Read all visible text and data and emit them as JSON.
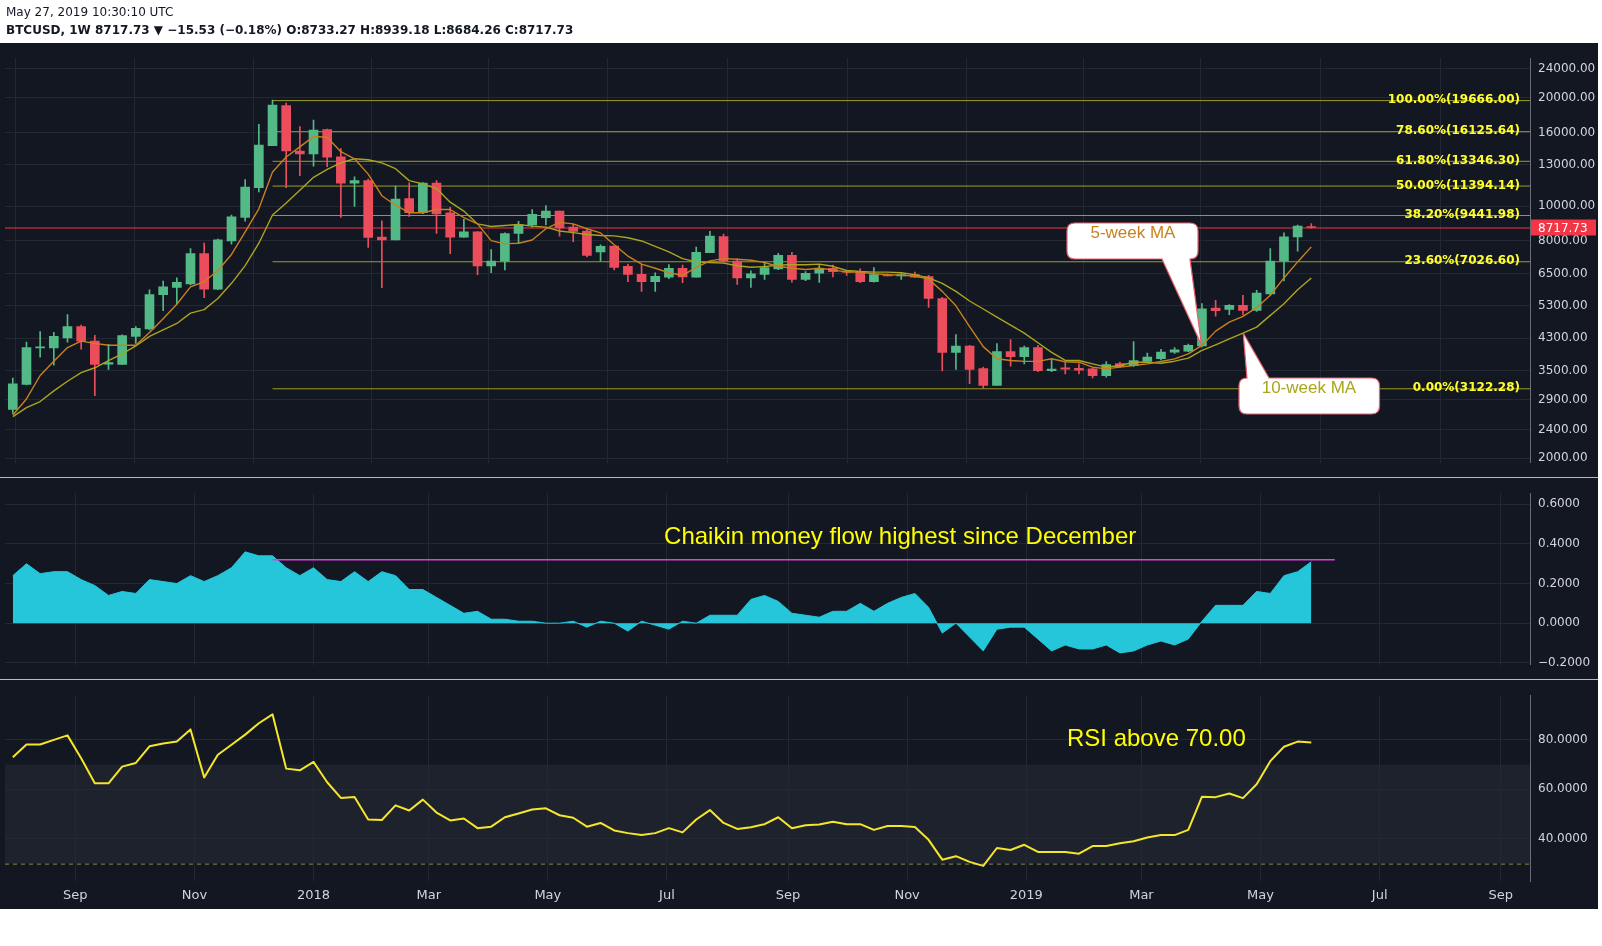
{
  "chart_data": [
    {
      "type": "candlestick",
      "subtitle": "May 27, 2019 10:30:10 UTC",
      "title": "BTCUSD, 1W  8717.73 ▼ −15.53 (−0.18%) O:8733.27 H:8939.18 L:8684.26 C:8717.73",
      "x": [
        "2017-07-31",
        "2017-08-07",
        "2017-08-14",
        "2017-08-21",
        "2017-08-28",
        "2017-09-04",
        "2017-09-11",
        "2017-09-18",
        "2017-09-25",
        "2017-10-02",
        "2017-10-09",
        "2017-10-16",
        "2017-10-23",
        "2017-10-30",
        "2017-11-06",
        "2017-11-13",
        "2017-11-20",
        "2017-11-27",
        "2017-12-04",
        "2017-12-11",
        "2017-12-18",
        "2017-12-25",
        "2018-01-01",
        "2018-01-08",
        "2018-01-15",
        "2018-01-22",
        "2018-01-29",
        "2018-02-05",
        "2018-02-12",
        "2018-02-19",
        "2018-02-26",
        "2018-03-05",
        "2018-03-12",
        "2018-03-19",
        "2018-03-26",
        "2018-04-02",
        "2018-04-09",
        "2018-04-16",
        "2018-04-23",
        "2018-04-30",
        "2018-05-07",
        "2018-05-14",
        "2018-05-21",
        "2018-05-28",
        "2018-06-04",
        "2018-06-11",
        "2018-06-18",
        "2018-06-25",
        "2018-07-02",
        "2018-07-09",
        "2018-07-16",
        "2018-07-23",
        "2018-07-30",
        "2018-08-06",
        "2018-08-13",
        "2018-08-20",
        "2018-08-27",
        "2018-09-03",
        "2018-09-10",
        "2018-09-17",
        "2018-09-24",
        "2018-10-01",
        "2018-10-08",
        "2018-10-15",
        "2018-10-22",
        "2018-10-29",
        "2018-11-05",
        "2018-11-12",
        "2018-11-19",
        "2018-11-26",
        "2018-12-03",
        "2018-12-10",
        "2018-12-17",
        "2018-12-24",
        "2018-12-31",
        "2019-01-07",
        "2019-01-14",
        "2019-01-21",
        "2019-01-28",
        "2019-02-04",
        "2019-02-11",
        "2019-02-18",
        "2019-02-25",
        "2019-03-04",
        "2019-03-11",
        "2019-03-18",
        "2019-03-25",
        "2019-04-01",
        "2019-04-08",
        "2019-04-15",
        "2019-04-22",
        "2019-04-29",
        "2019-05-06",
        "2019-05-13",
        "2019-05-20",
        "2019-05-27"
      ],
      "ohlc": [
        [
          2726,
          3332,
          2661,
          3210
        ],
        [
          3198,
          4194,
          3190,
          4050
        ],
        [
          4040,
          4486,
          3807,
          4070
        ],
        [
          4040,
          4460,
          3617,
          4351
        ],
        [
          4305,
          5002,
          4194,
          4627
        ],
        [
          4627,
          4675,
          4005,
          4220
        ],
        [
          4220,
          4380,
          2977,
          3639
        ],
        [
          3640,
          4135,
          3520,
          3680
        ],
        [
          3639,
          4395,
          3639,
          4370
        ],
        [
          4350,
          4630,
          4160,
          4580
        ],
        [
          4565,
          5858,
          4535,
          5679
        ],
        [
          5679,
          6192,
          5125,
          5967
        ],
        [
          5950,
          6320,
          5362,
          6140
        ],
        [
          6085,
          7615,
          6040,
          7384
        ],
        [
          7384,
          7887,
          5565,
          5882
        ],
        [
          5882,
          8100,
          5860,
          8053
        ],
        [
          8000,
          9430,
          7840,
          9332
        ],
        [
          9300,
          11840,
          9070,
          11290
        ],
        [
          11250,
          16840,
          10950,
          14750
        ],
        [
          14700,
          19666,
          14700,
          19050
        ],
        [
          19000,
          19300,
          11250,
          14210
        ],
        [
          14210,
          16600,
          12130,
          13950
        ],
        [
          13950,
          17300,
          12900,
          16230
        ],
        [
          16300,
          16350,
          12850,
          13670
        ],
        [
          13700,
          14440,
          9290,
          11570
        ],
        [
          11570,
          12050,
          9980,
          11760
        ],
        [
          11760,
          11880,
          7680,
          8187
        ],
        [
          8200,
          9100,
          5940,
          8053
        ],
        [
          8053,
          11360,
          8053,
          10445
        ],
        [
          10490,
          11600,
          9350,
          9583
        ],
        [
          9580,
          11620,
          9520,
          11570
        ],
        [
          11570,
          11760,
          8390,
          9500
        ],
        [
          9580,
          9920,
          7370,
          8200
        ],
        [
          8200,
          9190,
          8180,
          8475
        ],
        [
          8475,
          8500,
          6450,
          6817
        ],
        [
          6817,
          7570,
          6530,
          7030
        ],
        [
          7030,
          8420,
          6650,
          8390
        ],
        [
          8390,
          9070,
          7886,
          8862
        ],
        [
          8862,
          9780,
          8730,
          9485
        ],
        [
          9280,
          10025,
          8862,
          9682
        ],
        [
          9682,
          9682,
          8250,
          8700
        ],
        [
          8738,
          8900,
          7965,
          8508
        ],
        [
          8520,
          8650,
          7230,
          7295
        ],
        [
          7460,
          7810,
          7040,
          7725
        ],
        [
          7740,
          7740,
          6650,
          6760
        ],
        [
          6800,
          6900,
          6170,
          6460
        ],
        [
          6460,
          6880,
          5798,
          6166
        ],
        [
          6166,
          6530,
          5798,
          6385
        ],
        [
          6350,
          6880,
          6290,
          6720
        ],
        [
          6720,
          6860,
          6130,
          6360
        ],
        [
          6350,
          7693,
          6350,
          7445
        ],
        [
          7420,
          8510,
          7420,
          8250
        ],
        [
          8220,
          8360,
          6970,
          7040
        ],
        [
          7040,
          7140,
          6060,
          6320
        ],
        [
          6320,
          6610,
          5950,
          6480
        ],
        [
          6460,
          6930,
          6260,
          6745
        ],
        [
          6690,
          7390,
          6660,
          7300
        ],
        [
          7300,
          7445,
          6150,
          6260
        ],
        [
          6260,
          6580,
          6210,
          6510
        ],
        [
          6510,
          6860,
          6135,
          6720
        ],
        [
          6720,
          6860,
          6360,
          6580
        ],
        [
          6600,
          6610,
          6424,
          6550
        ],
        [
          6580,
          6700,
          6125,
          6170
        ],
        [
          6170,
          6745,
          6150,
          6450
        ],
        [
          6450,
          6480,
          6400,
          6400
        ],
        [
          6400,
          6500,
          6260,
          6450
        ],
        [
          6450,
          6560,
          6330,
          6350
        ],
        [
          6370,
          6424,
          5233,
          5541
        ],
        [
          5541,
          5580,
          3486,
          3927
        ],
        [
          3927,
          4400,
          3520,
          4090
        ],
        [
          4090,
          4110,
          3218,
          3520
        ],
        [
          3540,
          3575,
          3122.28,
          3179
        ],
        [
          3179,
          4155,
          3179,
          3950
        ],
        [
          3950,
          4263,
          3595,
          3820
        ],
        [
          3820,
          4090,
          3650,
          4050
        ],
        [
          4050,
          4110,
          3472,
          3494
        ],
        [
          3494,
          3755,
          3472,
          3530
        ],
        [
          3560,
          3680,
          3420,
          3530
        ],
        [
          3549,
          3649,
          3423,
          3505
        ],
        [
          3534,
          3560,
          3336,
          3386
        ],
        [
          3386,
          3704,
          3350,
          3634
        ],
        [
          3658,
          3690,
          3560,
          3587
        ],
        [
          3610,
          4210,
          3590,
          3728
        ],
        [
          3705,
          3908,
          3690,
          3808
        ],
        [
          3770,
          4003,
          3740,
          3933
        ],
        [
          3933,
          4052,
          3900,
          3992
        ],
        [
          3960,
          4143,
          3947,
          4105
        ],
        [
          4090,
          5360,
          4062,
          5190
        ],
        [
          5210,
          5476,
          4952,
          5124
        ],
        [
          5170,
          5330,
          4995,
          5304
        ],
        [
          5304,
          5654,
          4995,
          5135
        ],
        [
          5135,
          5833,
          5100,
          5739
        ],
        [
          5700,
          7621,
          5660,
          7030
        ],
        [
          7026,
          8425,
          6196,
          8214
        ],
        [
          8214,
          8855,
          7490,
          8797
        ],
        [
          8733.27,
          8939.18,
          8684.26,
          8717.73
        ]
      ],
      "series": [
        {
          "type": "line",
          "name": "5-week MA",
          "color": "#c8811e",
          "values": [
            2633,
            2917,
            3388,
            3708,
            4050,
            4220,
            4159,
            4108,
            4108,
            4108,
            4459,
            4869,
            5341,
            5967,
            6166,
            6624,
            7340,
            8472,
            9820,
            12430,
            13670,
            14590,
            15580,
            15520,
            14150,
            13520,
            12260,
            10680,
            10050,
            9580,
            9580,
            9780,
            9780,
            9290,
            8920,
            8017,
            7855,
            7886,
            8050,
            8649,
            9010,
            8920,
            8649,
            8420,
            7805,
            7263,
            6900,
            6720,
            6530,
            6424,
            6761,
            7044,
            7145,
            7116,
            7072,
            6971,
            6804,
            6720,
            6665,
            6720,
            6651,
            6557,
            6557,
            6489,
            6450,
            6424,
            6397,
            6267,
            5798,
            5287,
            4627,
            4074,
            3769,
            3730,
            3708,
            3708,
            3769,
            3700,
            3688,
            3573,
            3534,
            3573,
            3610,
            3649,
            3704,
            3768,
            3890,
            4105,
            4498,
            4766,
            4941,
            5224,
            5653,
            6317,
            6998,
            7702
          ]
        },
        {
          "type": "line",
          "name": "10-week MA",
          "color": "#a9a51e",
          "values": [
            2606,
            2760,
            2869,
            3070,
            3265,
            3451,
            3559,
            3724,
            3887,
            4091,
            4351,
            4533,
            4723,
            5044,
            5159,
            5541,
            6103,
            6832,
            7886,
            9446,
            10190,
            11060,
            12010,
            12640,
            13170,
            13520,
            13440,
            13170,
            12690,
            11760,
            11520,
            11180,
            10250,
            9680,
            8920,
            8776,
            8829,
            8884,
            8794,
            8738,
            8525,
            8438,
            8334,
            8282,
            8265,
            8165,
            8000,
            7727,
            7460,
            7145,
            7000,
            6971,
            6943,
            6830,
            6761,
            6790,
            6858,
            6872,
            6872,
            6900,
            6804,
            6624,
            6584,
            6557,
            6557,
            6530,
            6450,
            6319,
            6103,
            5798,
            5452,
            5180,
            4920,
            4675,
            4441,
            4176,
            3927,
            3730,
            3728,
            3649,
            3573,
            3610,
            3688,
            3688,
            3664,
            3712,
            3784,
            3976,
            4122,
            4282,
            4441,
            4615,
            4973,
            5360,
            5861,
            6317
          ]
        }
      ],
      "xlim": [
        "2017-07-27",
        "2019-09-16"
      ],
      "xticks": [
        {
          "value": "2017-09-01",
          "label": null
        },
        {
          "value": "2017-11-01",
          "label": null
        },
        {
          "value": "2018-01-01",
          "label": null
        },
        {
          "value": "2018-03-01",
          "label": null
        },
        {
          "value": "2018-05-01",
          "label": null
        },
        {
          "value": "2018-07-01",
          "label": null
        },
        {
          "value": "2018-09-01",
          "label": null
        },
        {
          "value": "2018-11-01",
          "label": null
        },
        {
          "value": "2019-01-01",
          "label": null
        },
        {
          "value": "2019-03-01",
          "label": null
        },
        {
          "value": "2019-05-01",
          "label": null
        },
        {
          "value": "2019-07-01",
          "label": null
        },
        {
          "value": "2019-09-01",
          "label": null
        }
      ],
      "ylim": [
        1940,
        25700
      ],
      "yticks": [
        {
          "value": 2000,
          "label": "2000.00"
        },
        {
          "value": 2400,
          "label": "2400.00"
        },
        {
          "value": 2900,
          "label": "2900.00"
        },
        {
          "value": 3500,
          "label": "3500.00"
        },
        {
          "value": 4300,
          "label": "4300.00"
        },
        {
          "value": 5300,
          "label": "5300.00"
        },
        {
          "value": 6500,
          "label": "6500.00"
        },
        {
          "value": 8000,
          "label": "8000.00"
        },
        {
          "value": 10000,
          "label": "10000.00"
        },
        {
          "value": 13000,
          "label": "13000.00"
        },
        {
          "value": 16000,
          "label": "16000.00"
        },
        {
          "value": 20000,
          "label": "20000.00"
        },
        {
          "value": 24000,
          "label": "24000.00"
        }
      ],
      "log": "y",
      "grid": true,
      "tick_labels": "y",
      "marker": "none",
      "ref_lines": [
        {
          "axis": "y",
          "value": 19666,
          "label": "100.00%(19666.00)",
          "color": "#9c9c24"
        },
        {
          "axis": "y",
          "value": 16125.64,
          "label": "78.60%(16125.64)",
          "color": "#9c9c24"
        },
        {
          "axis": "y",
          "value": 13346.3,
          "label": "61.80%(13346.30)",
          "color": "#9c9c24"
        },
        {
          "axis": "y",
          "value": 11394.14,
          "label": "50.00%(11394.14)",
          "color": "#9c9c24"
        },
        {
          "axis": "y",
          "value": 9441.98,
          "label": "38.20%(9441.98)",
          "color": "#9c9c24"
        },
        {
          "axis": "y",
          "value": 7026.6,
          "label": "23.60%(7026.60)",
          "color": "#9c9c24"
        },
        {
          "axis": "y",
          "value": 3122.28,
          "label": "0.00%(3122.28)",
          "color": "#9c9c24"
        },
        {
          "axis": "y",
          "value": 8717.73,
          "label": "8717.73",
          "color": "#f23645"
        }
      ]
    },
    {
      "type": "area",
      "x": [
        "2017-07-31",
        "2017-08-07",
        "2017-08-14",
        "2017-08-21",
        "2017-08-28",
        "2017-09-04",
        "2017-09-11",
        "2017-09-18",
        "2017-09-25",
        "2017-10-02",
        "2017-10-09",
        "2017-10-16",
        "2017-10-23",
        "2017-10-30",
        "2017-11-06",
        "2017-11-13",
        "2017-11-20",
        "2017-11-27",
        "2017-12-04",
        "2017-12-11",
        "2017-12-18",
        "2017-12-25",
        "2018-01-01",
        "2018-01-08",
        "2018-01-15",
        "2018-01-22",
        "2018-01-29",
        "2018-02-05",
        "2018-02-12",
        "2018-02-19",
        "2018-02-26",
        "2018-03-05",
        "2018-03-12",
        "2018-03-19",
        "2018-03-26",
        "2018-04-02",
        "2018-04-09",
        "2018-04-16",
        "2018-04-23",
        "2018-04-30",
        "2018-05-07",
        "2018-05-14",
        "2018-05-21",
        "2018-05-28",
        "2018-06-04",
        "2018-06-11",
        "2018-06-18",
        "2018-06-25",
        "2018-07-02",
        "2018-07-09",
        "2018-07-16",
        "2018-07-23",
        "2018-07-30",
        "2018-08-06",
        "2018-08-13",
        "2018-08-20",
        "2018-08-27",
        "2018-09-03",
        "2018-09-10",
        "2018-09-17",
        "2018-09-24",
        "2018-10-01",
        "2018-10-08",
        "2018-10-15",
        "2018-10-22",
        "2018-10-29",
        "2018-11-05",
        "2018-11-12",
        "2018-11-19",
        "2018-11-26",
        "2018-12-03",
        "2018-12-10",
        "2018-12-17",
        "2018-12-24",
        "2018-12-31",
        "2019-01-07",
        "2019-01-14",
        "2019-01-21",
        "2019-01-28",
        "2019-02-04",
        "2019-02-11",
        "2019-02-18",
        "2019-02-25",
        "2019-03-04",
        "2019-03-11",
        "2019-03-18",
        "2019-03-25",
        "2019-04-01",
        "2019-04-08",
        "2019-04-15",
        "2019-04-22",
        "2019-04-29",
        "2019-05-06",
        "2019-05-13",
        "2019-05-20",
        "2019-05-27"
      ],
      "series": [
        {
          "type": "area",
          "color": "#26c6da",
          "values": [
            0.24,
            0.3,
            0.25,
            0.26,
            0.26,
            0.22,
            0.19,
            0.14,
            0.16,
            0.15,
            0.22,
            0.21,
            0.2,
            0.24,
            0.21,
            0.24,
            0.28,
            0.36,
            0.34,
            0.34,
            0.28,
            0.24,
            0.28,
            0.22,
            0.21,
            0.26,
            0.21,
            0.26,
            0.24,
            0.17,
            0.17,
            0.13,
            0.09,
            0.05,
            0.06,
            0.02,
            0.02,
            0.01,
            0.01,
            0,
            0,
            0.01,
            -0.02,
            0.01,
            0,
            -0.04,
            0.01,
            -0.01,
            -0.03,
            0.01,
            0,
            0.04,
            0.04,
            0.04,
            0.12,
            0.14,
            0.11,
            0.05,
            0.04,
            0.03,
            0.06,
            0.06,
            0.1,
            0.06,
            0.1,
            0.13,
            0.15,
            0.08,
            -0.05,
            0,
            -0.07,
            -0.14,
            -0.03,
            -0.02,
            -0.02,
            -0.08,
            -0.14,
            -0.11,
            -0.13,
            -0.13,
            -0.11,
            -0.15,
            -0.14,
            -0.11,
            -0.09,
            -0.11,
            -0.08,
            0.01,
            0.09,
            0.09,
            0.09,
            0.16,
            0.15,
            0.24,
            0.26,
            0.31
          ]
        },
        {
          "type": "line",
          "color": "#e03ee0",
          "x": [
            "2017-12-11",
            "2019-06-08"
          ],
          "values": [
            0.32,
            0.32
          ]
        }
      ],
      "xlim": [
        "2017-07-27",
        "2019-09-16"
      ],
      "xticks": [
        {
          "value": "2017-09-01",
          "label": null
        },
        {
          "value": "2017-11-01",
          "label": null
        },
        {
          "value": "2018-01-01",
          "label": null
        },
        {
          "value": "2018-03-01",
          "label": null
        },
        {
          "value": "2018-05-01",
          "label": null
        },
        {
          "value": "2018-07-01",
          "label": null
        },
        {
          "value": "2018-09-01",
          "label": null
        },
        {
          "value": "2018-11-01",
          "label": null
        },
        {
          "value": "2019-01-01",
          "label": null
        },
        {
          "value": "2019-03-01",
          "label": null
        },
        {
          "value": "2019-05-01",
          "label": null
        },
        {
          "value": "2019-07-01",
          "label": null
        },
        {
          "value": "2019-09-01",
          "label": null
        }
      ],
      "ylim": [
        -0.21,
        0.656
      ],
      "yticks": [
        {
          "value": -0.2,
          "label": "−0.2000"
        },
        {
          "value": 0,
          "label": "0.0000"
        },
        {
          "value": 0.2,
          "label": "0.2000"
        },
        {
          "value": 0.4,
          "label": "0.4000"
        },
        {
          "value": 0.6,
          "label": "0.6000"
        }
      ],
      "grid": true,
      "tick_labels": "y",
      "marker": "none",
      "annotations": [
        "Chaikin money flow highest since December"
      ]
    },
    {
      "type": "line",
      "x": [
        "2017-07-31",
        "2017-08-07",
        "2017-08-14",
        "2017-08-21",
        "2017-08-28",
        "2017-09-04",
        "2017-09-11",
        "2017-09-18",
        "2017-09-25",
        "2017-10-02",
        "2017-10-09",
        "2017-10-16",
        "2017-10-23",
        "2017-10-30",
        "2017-11-06",
        "2017-11-13",
        "2017-11-20",
        "2017-11-27",
        "2017-12-04",
        "2017-12-11",
        "2017-12-18",
        "2017-12-25",
        "2018-01-01",
        "2018-01-08",
        "2018-01-15",
        "2018-01-22",
        "2018-01-29",
        "2018-02-05",
        "2018-02-12",
        "2018-02-19",
        "2018-02-26",
        "2018-03-05",
        "2018-03-12",
        "2018-03-19",
        "2018-03-26",
        "2018-04-02",
        "2018-04-09",
        "2018-04-16",
        "2018-04-23",
        "2018-04-30",
        "2018-05-07",
        "2018-05-14",
        "2018-05-21",
        "2018-05-28",
        "2018-06-04",
        "2018-06-11",
        "2018-06-18",
        "2018-06-25",
        "2018-07-02",
        "2018-07-09",
        "2018-07-16",
        "2018-07-23",
        "2018-07-30",
        "2018-08-06",
        "2018-08-13",
        "2018-08-20",
        "2018-08-27",
        "2018-09-03",
        "2018-09-10",
        "2018-09-17",
        "2018-09-24",
        "2018-10-01",
        "2018-10-08",
        "2018-10-15",
        "2018-10-22",
        "2018-10-29",
        "2018-11-05",
        "2018-11-12",
        "2018-11-19",
        "2018-11-26",
        "2018-12-03",
        "2018-12-10",
        "2018-12-17",
        "2018-12-24",
        "2018-12-31",
        "2019-01-07",
        "2019-01-14",
        "2019-01-21",
        "2019-01-28",
        "2019-02-04",
        "2019-02-11",
        "2019-02-18",
        "2019-02-25",
        "2019-03-04",
        "2019-03-11",
        "2019-03-18",
        "2019-03-25",
        "2019-04-01",
        "2019-04-08",
        "2019-04-15",
        "2019-04-22",
        "2019-04-29",
        "2019-05-06",
        "2019-05-13",
        "2019-05-20",
        "2019-05-27"
      ],
      "values": [
        72.9,
        78.0,
        78.0,
        79.9,
        81.7,
        72.5,
        62.4,
        62.4,
        69.1,
        70.6,
        77.3,
        78.4,
        79.2,
        84.1,
        64.7,
        73.9,
        77.9,
        82.0,
        86.6,
        90.2,
        68.3,
        67.6,
        71.0,
        62.8,
        56.5,
        56.9,
        47.8,
        47.6,
        53.5,
        51.4,
        55.8,
        50.6,
        47.4,
        48.2,
        44.3,
        44.9,
        48.7,
        50.2,
        51.8,
        52.3,
        49.5,
        48.5,
        44.9,
        46.4,
        43.4,
        42.3,
        41.5,
        42.3,
        44.3,
        42.6,
        47.8,
        51.6,
        46.4,
        44.0,
        44.7,
        45.9,
        48.7,
        44.3,
        45.5,
        45.8,
        46.9,
        45.9,
        45.9,
        43.6,
        45.2,
        45.2,
        44.8,
        39.6,
        31.6,
        33.0,
        30.7,
        29.1,
        36.3,
        35.5,
        37.6,
        34.7,
        34.7,
        34.7,
        34.0,
        37.1,
        37.1,
        38.2,
        39.0,
        40.5,
        41.5,
        41.5,
        43.6,
        57.0,
        56.8,
        58.3,
        56.4,
        62.0,
        71.3,
        77.1,
        79.2,
        78.8
      ],
      "color": "#f5e62a",
      "xlim": [
        "2017-07-27",
        "2019-09-16"
      ],
      "xticks": [
        {
          "value": "2017-09-01",
          "label": "Sep"
        },
        {
          "value": "2017-11-01",
          "label": "Nov"
        },
        {
          "value": "2018-01-01",
          "label": "2018"
        },
        {
          "value": "2018-03-01",
          "label": "Mar"
        },
        {
          "value": "2018-05-01",
          "label": "May"
        },
        {
          "value": "2018-07-01",
          "label": "Jul"
        },
        {
          "value": "2018-09-01",
          "label": "Sep"
        },
        {
          "value": "2018-11-01",
          "label": "Nov"
        },
        {
          "value": "2019-01-01",
          "label": "2019"
        },
        {
          "value": "2019-03-01",
          "label": "Mar"
        },
        {
          "value": "2019-05-01",
          "label": "May"
        },
        {
          "value": "2019-07-01",
          "label": "Jul"
        },
        {
          "value": "2019-09-01",
          "label": "Sep"
        }
      ],
      "ylim": [
        23,
        97.9
      ],
      "yticks": [
        {
          "value": 40,
          "label": "40.0000"
        },
        {
          "value": 60,
          "label": "60.0000"
        },
        {
          "value": 80,
          "label": "80.0000"
        }
      ],
      "grid": true,
      "marker": "none",
      "bands": [
        {
          "axis": "y",
          "from": 30,
          "to": 70,
          "color": "#1e222d"
        }
      ],
      "ref_lines": [
        {
          "axis": "y",
          "value": 30,
          "color": "#8c8a3a",
          "line_style": "dashed"
        }
      ],
      "annotations": [
        "RSI above 70.00"
      ]
    }
  ]
}
